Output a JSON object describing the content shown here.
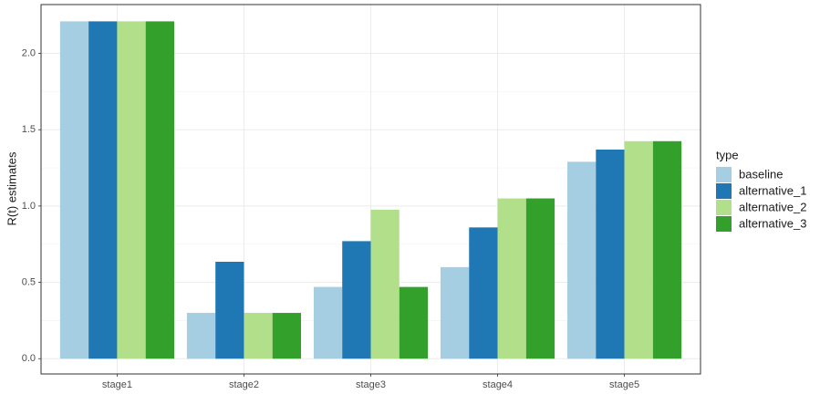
{
  "chart_data": {
    "type": "bar",
    "y_label": "R(t) estimates",
    "legend_title": "type",
    "categories": [
      "stage1",
      "stage2",
      "stage3",
      "stage4",
      "stage5"
    ],
    "series": [
      {
        "name": "baseline",
        "color": "#a6cee3",
        "values": [
          2.21,
          0.3,
          0.47,
          0.6,
          1.29
        ]
      },
      {
        "name": "alternative_1",
        "color": "#1f78b4",
        "values": [
          2.21,
          0.635,
          0.77,
          0.86,
          1.37
        ]
      },
      {
        "name": "alternative_2",
        "color": "#b2df8a",
        "values": [
          2.21,
          0.3,
          0.976,
          1.05,
          1.425
        ]
      },
      {
        "name": "alternative_3",
        "color": "#33a02c",
        "values": [
          2.21,
          0.3,
          0.47,
          1.05,
          1.425
        ]
      }
    ],
    "ylim": [
      -0.1,
      2.32
    ],
    "yticks": [
      {
        "value": 0,
        "label": "0.0"
      },
      0.5,
      {
        "value": 1,
        "label": "1.0"
      },
      1.5,
      {
        "value": 2,
        "label": "2.0"
      }
    ],
    "grid": true,
    "legend": "right"
  }
}
